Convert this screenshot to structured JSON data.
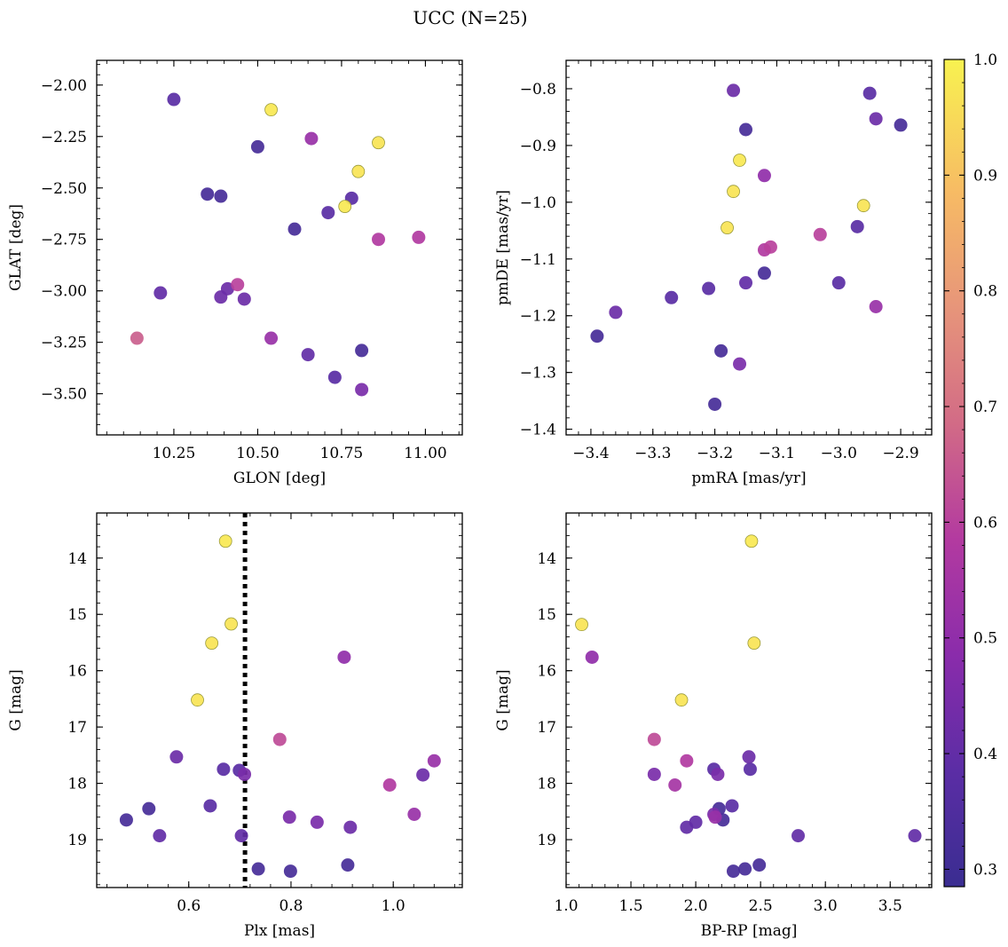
{
  "figure": {
    "title": "UCC (N=25)"
  },
  "colorbar": {
    "min": 0.285,
    "max": 1.0,
    "ticks": [
      0.3,
      0.4,
      0.5,
      0.6,
      0.7,
      0.8,
      0.9,
      1.0
    ],
    "colormap": "plasma"
  },
  "chart_data": [
    {
      "type": "scatter",
      "panel": "top-left",
      "xlabel": "GLON [deg]",
      "ylabel": "GLAT [deg]",
      "xlim": [
        10.02,
        11.11
      ],
      "ylim": [
        -3.7,
        -1.88
      ],
      "xticks": [
        10.25,
        10.5,
        10.75,
        11.0
      ],
      "xtick_labels": [
        "10.25",
        "10.50",
        "10.75",
        "11.00"
      ],
      "yticks": [
        -3.5,
        -3.25,
        -3.0,
        -2.75,
        -2.5,
        -2.25,
        -2.0
      ],
      "ytick_labels": [
        "−3.50",
        "−3.25",
        "−3.00",
        "−2.75",
        "−2.50",
        "−2.25",
        "−2.00"
      ],
      "points": [
        {
          "x": 10.25,
          "y": -2.07,
          "c": 0.38
        },
        {
          "x": 10.54,
          "y": -2.12,
          "c": 0.98
        },
        {
          "x": 10.66,
          "y": -2.26,
          "c": 0.52
        },
        {
          "x": 10.86,
          "y": -2.28,
          "c": 0.97
        },
        {
          "x": 10.5,
          "y": -2.3,
          "c": 0.32
        },
        {
          "x": 10.8,
          "y": -2.42,
          "c": 0.97
        },
        {
          "x": 10.35,
          "y": -2.53,
          "c": 0.32
        },
        {
          "x": 10.39,
          "y": -2.54,
          "c": 0.32
        },
        {
          "x": 10.76,
          "y": -2.59,
          "c": 0.98
        },
        {
          "x": 10.78,
          "y": -2.55,
          "c": 0.38
        },
        {
          "x": 10.71,
          "y": -2.62,
          "c": 0.38
        },
        {
          "x": 10.61,
          "y": -2.7,
          "c": 0.32
        },
        {
          "x": 10.86,
          "y": -2.75,
          "c": 0.58
        },
        {
          "x": 10.98,
          "y": -2.74,
          "c": 0.58
        },
        {
          "x": 10.44,
          "y": -2.97,
          "c": 0.6
        },
        {
          "x": 10.41,
          "y": -2.99,
          "c": 0.42
        },
        {
          "x": 10.21,
          "y": -3.01,
          "c": 0.4
        },
        {
          "x": 10.39,
          "y": -3.03,
          "c": 0.42
        },
        {
          "x": 10.46,
          "y": -3.04,
          "c": 0.42
        },
        {
          "x": 10.14,
          "y": -3.23,
          "c": 0.66
        },
        {
          "x": 10.54,
          "y": -3.23,
          "c": 0.52
        },
        {
          "x": 10.65,
          "y": -3.31,
          "c": 0.4
        },
        {
          "x": 10.81,
          "y": -3.29,
          "c": 0.32
        },
        {
          "x": 10.73,
          "y": -3.42,
          "c": 0.38
        },
        {
          "x": 10.81,
          "y": -3.48,
          "c": 0.45
        }
      ]
    },
    {
      "type": "scatter",
      "panel": "top-right",
      "xlabel": "pmRA [mas/yr]",
      "ylabel": "pmDE [mas/yr]",
      "xlim": [
        -3.44,
        -2.85
      ],
      "ylim": [
        -1.41,
        -0.75
      ],
      "xticks": [
        -3.4,
        -3.3,
        -3.2,
        -3.1,
        -3.0,
        -2.9
      ],
      "xtick_labels": [
        "−3.4",
        "−3.3",
        "−3.2",
        "−3.1",
        "−3.0",
        "−2.9"
      ],
      "yticks": [
        -1.4,
        -1.3,
        -1.2,
        -1.1,
        -1.0,
        -0.9,
        -0.8
      ],
      "ytick_labels": [
        "−1.4",
        "−1.3",
        "−1.2",
        "−1.1",
        "−1.0",
        "−0.9",
        "−0.8"
      ],
      "points": [
        {
          "x": -3.17,
          "y": -0.803,
          "c": 0.42
        },
        {
          "x": -2.95,
          "y": -0.808,
          "c": 0.38
        },
        {
          "x": -2.94,
          "y": -0.853,
          "c": 0.42
        },
        {
          "x": -3.15,
          "y": -0.872,
          "c": 0.32
        },
        {
          "x": -2.9,
          "y": -0.864,
          "c": 0.32
        },
        {
          "x": -3.16,
          "y": -0.926,
          "c": 0.98
        },
        {
          "x": -3.12,
          "y": -0.953,
          "c": 0.5
        },
        {
          "x": -3.17,
          "y": -0.981,
          "c": 0.97
        },
        {
          "x": -2.96,
          "y": -1.006,
          "c": 0.97
        },
        {
          "x": -3.18,
          "y": -1.045,
          "c": 0.97
        },
        {
          "x": -2.97,
          "y": -1.043,
          "c": 0.38
        },
        {
          "x": -3.03,
          "y": -1.057,
          "c": 0.6
        },
        {
          "x": -3.11,
          "y": -1.079,
          "c": 0.6
        },
        {
          "x": -3.12,
          "y": -1.084,
          "c": 0.58
        },
        {
          "x": -3.12,
          "y": -1.125,
          "c": 0.32
        },
        {
          "x": -3.15,
          "y": -1.142,
          "c": 0.4
        },
        {
          "x": -3.21,
          "y": -1.152,
          "c": 0.38
        },
        {
          "x": -3.0,
          "y": -1.142,
          "c": 0.38
        },
        {
          "x": -3.27,
          "y": -1.168,
          "c": 0.38
        },
        {
          "x": -2.94,
          "y": -1.184,
          "c": 0.52
        },
        {
          "x": -3.36,
          "y": -1.194,
          "c": 0.42
        },
        {
          "x": -3.39,
          "y": -1.236,
          "c": 0.32
        },
        {
          "x": -3.19,
          "y": -1.262,
          "c": 0.32
        },
        {
          "x": -3.16,
          "y": -1.285,
          "c": 0.45
        },
        {
          "x": -3.2,
          "y": -1.356,
          "c": 0.32
        }
      ]
    },
    {
      "type": "scatter",
      "panel": "bottom-left",
      "xlabel": "Plx [mas]",
      "ylabel": "G [mag]",
      "xlim": [
        0.42,
        1.135
      ],
      "ylim": [
        19.85,
        13.2
      ],
      "inverted_y": true,
      "vline_x": 0.71,
      "xticks": [
        0.6,
        0.8,
        1.0
      ],
      "xtick_labels": [
        "0.6",
        "0.8",
        "1.0"
      ],
      "yticks": [
        14,
        15,
        16,
        17,
        18,
        19
      ],
      "ytick_labels": [
        "14",
        "15",
        "16",
        "17",
        "18",
        "19"
      ],
      "points": [
        {
          "x": 0.672,
          "y": 13.7,
          "c": 0.98
        },
        {
          "x": 0.683,
          "y": 15.17,
          "c": 0.97
        },
        {
          "x": 0.645,
          "y": 15.51,
          "c": 0.97
        },
        {
          "x": 0.904,
          "y": 15.76,
          "c": 0.5
        },
        {
          "x": 0.617,
          "y": 16.52,
          "c": 0.97
        },
        {
          "x": 0.576,
          "y": 17.53,
          "c": 0.42
        },
        {
          "x": 0.778,
          "y": 17.22,
          "c": 0.62
        },
        {
          "x": 1.08,
          "y": 17.6,
          "c": 0.52
        },
        {
          "x": 0.668,
          "y": 17.75,
          "c": 0.38
        },
        {
          "x": 0.699,
          "y": 17.77,
          "c": 0.38
        },
        {
          "x": 0.709,
          "y": 17.84,
          "c": 0.45
        },
        {
          "x": 1.058,
          "y": 17.85,
          "c": 0.42
        },
        {
          "x": 0.993,
          "y": 18.03,
          "c": 0.58
        },
        {
          "x": 0.642,
          "y": 18.4,
          "c": 0.38
        },
        {
          "x": 0.522,
          "y": 18.45,
          "c": 0.32
        },
        {
          "x": 1.041,
          "y": 18.55,
          "c": 0.52
        },
        {
          "x": 0.797,
          "y": 18.6,
          "c": 0.45
        },
        {
          "x": 0.478,
          "y": 18.65,
          "c": 0.32
        },
        {
          "x": 0.851,
          "y": 18.69,
          "c": 0.45
        },
        {
          "x": 0.916,
          "y": 18.78,
          "c": 0.42
        },
        {
          "x": 0.543,
          "y": 18.93,
          "c": 0.4
        },
        {
          "x": 0.703,
          "y": 18.93,
          "c": 0.4
        },
        {
          "x": 0.911,
          "y": 19.45,
          "c": 0.32
        },
        {
          "x": 0.736,
          "y": 19.52,
          "c": 0.32
        },
        {
          "x": 0.799,
          "y": 19.56,
          "c": 0.32
        }
      ]
    },
    {
      "type": "scatter",
      "panel": "bottom-right",
      "xlabel": "BP-RP [mag]",
      "ylabel": "G [mag]",
      "xlim": [
        1.0,
        3.82
      ],
      "ylim": [
        19.85,
        13.2
      ],
      "inverted_y": true,
      "xticks": [
        1.0,
        1.5,
        2.0,
        2.5,
        3.0,
        3.5
      ],
      "xtick_labels": [
        "1.0",
        "1.5",
        "2.0",
        "2.5",
        "3.0",
        "3.5"
      ],
      "yticks": [
        14,
        15,
        16,
        17,
        18,
        19
      ],
      "ytick_labels": [
        "14",
        "15",
        "16",
        "17",
        "18",
        "19"
      ],
      "points": [
        {
          "x": 2.43,
          "y": 13.7,
          "c": 0.98
        },
        {
          "x": 1.12,
          "y": 15.18,
          "c": 0.97
        },
        {
          "x": 2.45,
          "y": 15.51,
          "c": 0.97
        },
        {
          "x": 1.2,
          "y": 15.76,
          "c": 0.5
        },
        {
          "x": 1.89,
          "y": 16.52,
          "c": 0.97
        },
        {
          "x": 1.68,
          "y": 17.22,
          "c": 0.62
        },
        {
          "x": 1.93,
          "y": 17.6,
          "c": 0.58
        },
        {
          "x": 2.41,
          "y": 17.53,
          "c": 0.42
        },
        {
          "x": 2.14,
          "y": 17.75,
          "c": 0.38
        },
        {
          "x": 2.42,
          "y": 17.75,
          "c": 0.38
        },
        {
          "x": 1.68,
          "y": 17.84,
          "c": 0.45
        },
        {
          "x": 2.17,
          "y": 17.84,
          "c": 0.45
        },
        {
          "x": 1.84,
          "y": 18.03,
          "c": 0.55
        },
        {
          "x": 2.28,
          "y": 18.4,
          "c": 0.38
        },
        {
          "x": 2.18,
          "y": 18.45,
          "c": 0.32
        },
        {
          "x": 2.14,
          "y": 18.55,
          "c": 0.45
        },
        {
          "x": 2.15,
          "y": 18.6,
          "c": 0.52
        },
        {
          "x": 2.21,
          "y": 18.65,
          "c": 0.32
        },
        {
          "x": 2.0,
          "y": 18.69,
          "c": 0.4
        },
        {
          "x": 1.93,
          "y": 18.78,
          "c": 0.4
        },
        {
          "x": 2.79,
          "y": 18.93,
          "c": 0.4
        },
        {
          "x": 3.69,
          "y": 18.93,
          "c": 0.4
        },
        {
          "x": 2.49,
          "y": 19.45,
          "c": 0.32
        },
        {
          "x": 2.38,
          "y": 19.52,
          "c": 0.32
        },
        {
          "x": 2.29,
          "y": 19.56,
          "c": 0.32
        }
      ]
    }
  ]
}
